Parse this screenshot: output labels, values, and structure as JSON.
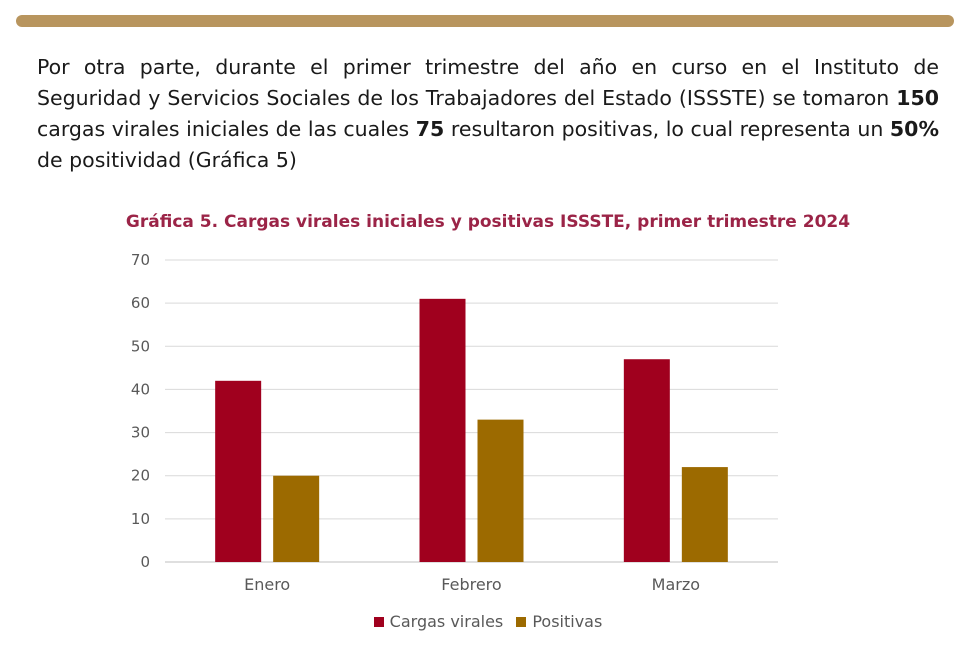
{
  "paragraph": {
    "p1": "Por otra parte, durante el primer trimestre del año en curso en el Instituto de Seguridad y Servicios Sociales de los Trabajadores del Estado (ISSSTE) se tomaron ",
    "b1": "150",
    "p2": " cargas virales iniciales de las cuales ",
    "b2": "75",
    "p3": " resultaron positivas, lo cual representa un ",
    "b3": "50%",
    "p4": " de positividad (Gráfica 5)"
  },
  "colors": {
    "accent_rule": "#b8955e",
    "title": "#9b2447",
    "series1": "#a0001e",
    "series2": "#9c6a00"
  },
  "chart_data": {
    "type": "bar",
    "title": "Gráfica 5. Cargas virales iniciales y positivas ISSSTE, primer trimestre 2024",
    "categories": [
      "Enero",
      "Febrero",
      "Marzo"
    ],
    "series": [
      {
        "name": "Cargas virales",
        "values": [
          42,
          61,
          47
        ]
      },
      {
        "name": "Positivas",
        "values": [
          20,
          33,
          22
        ]
      }
    ],
    "yticks": [
      "0",
      "10",
      "20",
      "30",
      "40",
      "50",
      "60",
      "70"
    ],
    "ylim": [
      0,
      70
    ],
    "grid": true,
    "legend_position": "bottom"
  }
}
